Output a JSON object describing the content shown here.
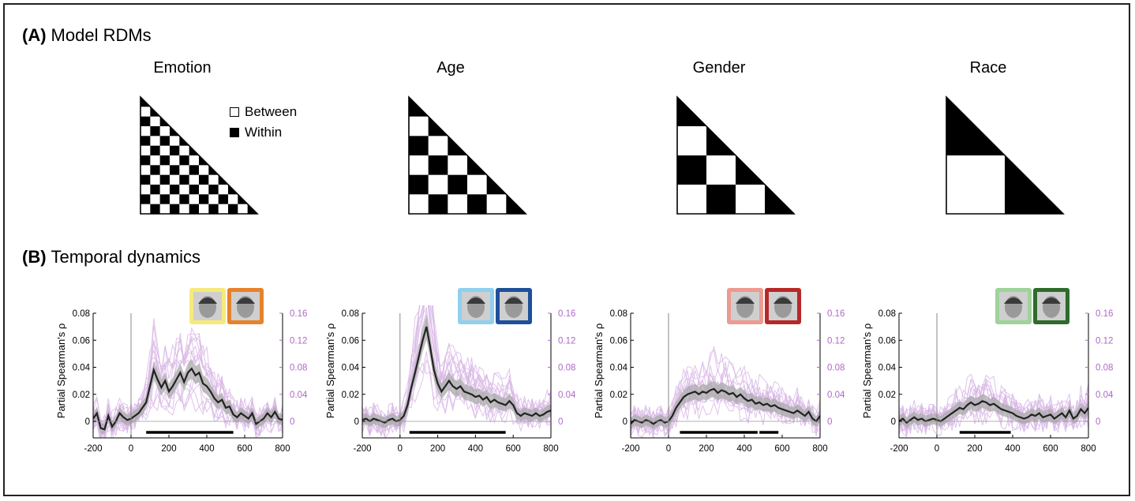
{
  "sections": {
    "a": {
      "label": "(A)",
      "title": "Model RDMs"
    },
    "b": {
      "label": "(B)",
      "title": "Temporal dynamics"
    }
  },
  "legend": {
    "between": "Between",
    "within": "Within"
  },
  "rdms": [
    {
      "title": "Emotion",
      "blocks": 12
    },
    {
      "title": "Age",
      "blocks": 6
    },
    {
      "title": "Gender",
      "blocks": 4
    },
    {
      "title": "Race",
      "blocks": 2
    }
  ],
  "colors": {
    "individual_lines": "#d9b8e6",
    "right_axis": "#b068c8",
    "mean_line": "#222222",
    "ci_band": "#aaaaaa",
    "emotion_frames": [
      "#f7ea7a",
      "#e8822a"
    ],
    "age_frames": [
      "#8fd0ef",
      "#1f4f9a"
    ],
    "gender_frames": [
      "#ee9a90",
      "#b82828"
    ],
    "race_frames": [
      "#9fd39a",
      "#2e6b2c"
    ]
  },
  "chart_data": [
    {
      "type": "line",
      "model": "Emotion",
      "xlabel": "",
      "ylabel": "Partial Spearman's ρ",
      "xlim": [
        -200,
        800
      ],
      "ylim": [
        -0.01,
        0.08
      ],
      "y2lim": [
        -0.02,
        0.16
      ],
      "xticks": [
        "-200",
        "0",
        "200",
        "400",
        "600",
        "800"
      ],
      "yticks": [
        "0",
        "0.02",
        "0.04",
        "0.06",
        "0.08"
      ],
      "y2ticks": [
        "0",
        "0.04",
        "0.08",
        "0.12",
        "0.16"
      ],
      "mean_x": [
        -200,
        -180,
        -160,
        -140,
        -120,
        -100,
        -80,
        -60,
        -40,
        -20,
        0,
        20,
        40,
        60,
        80,
        100,
        120,
        140,
        160,
        180,
        200,
        220,
        240,
        260,
        280,
        300,
        320,
        340,
        360,
        380,
        400,
        420,
        440,
        460,
        480,
        500,
        520,
        540,
        560,
        580,
        600,
        620,
        640,
        660,
        680,
        700,
        720,
        740,
        760,
        780,
        800
      ],
      "mean_y": [
        0.002,
        0.006,
        -0.005,
        -0.006,
        0.004,
        -0.004,
        0.0,
        0.006,
        0.003,
        0.001,
        0.002,
        0.004,
        0.006,
        0.01,
        0.014,
        0.026,
        0.038,
        0.031,
        0.025,
        0.03,
        0.022,
        0.026,
        0.031,
        0.036,
        0.029,
        0.036,
        0.039,
        0.034,
        0.036,
        0.028,
        0.026,
        0.022,
        0.017,
        0.014,
        0.016,
        0.01,
        0.011,
        0.005,
        0.003,
        0.006,
        0.004,
        0.002,
        0.006,
        -0.002,
        0.0,
        0.002,
        0.006,
        0.003,
        0.007,
        0.002,
        0.001
      ],
      "significant_intervals": [
        [
          80,
          540
        ]
      ],
      "face_frames": 2
    },
    {
      "type": "line",
      "model": "Age",
      "xlabel": "",
      "ylabel": "Partial Spearman's ρ",
      "xlim": [
        -200,
        800
      ],
      "ylim": [
        -0.01,
        0.08
      ],
      "y2lim": [
        -0.02,
        0.16
      ],
      "xticks": [
        "-200",
        "0",
        "200",
        "400",
        "600",
        "800"
      ],
      "yticks": [
        "0",
        "0.02",
        "0.04",
        "0.06",
        "0.08"
      ],
      "y2ticks": [
        "0",
        "0.04",
        "0.08",
        "0.12",
        "0.16"
      ],
      "mean_x": [
        -200,
        -180,
        -160,
        -140,
        -120,
        -100,
        -80,
        -60,
        -40,
        -20,
        0,
        20,
        40,
        60,
        80,
        100,
        120,
        140,
        160,
        180,
        200,
        220,
        240,
        260,
        280,
        300,
        320,
        340,
        360,
        380,
        400,
        420,
        440,
        460,
        480,
        500,
        520,
        540,
        560,
        580,
        600,
        620,
        640,
        660,
        680,
        700,
        720,
        740,
        760,
        780,
        800
      ],
      "mean_y": [
        0.001,
        0.002,
        0.0,
        0.002,
        0.001,
        0.0,
        -0.001,
        0.001,
        0.002,
        0.0,
        0.001,
        0.004,
        0.012,
        0.025,
        0.036,
        0.048,
        0.06,
        0.07,
        0.055,
        0.038,
        0.028,
        0.022,
        0.026,
        0.03,
        0.026,
        0.024,
        0.026,
        0.022,
        0.021,
        0.02,
        0.018,
        0.019,
        0.016,
        0.018,
        0.014,
        0.016,
        0.014,
        0.013,
        0.012,
        0.015,
        0.012,
        0.006,
        0.004,
        0.006,
        0.005,
        0.004,
        0.006,
        0.004,
        0.005,
        0.007,
        0.008
      ],
      "significant_intervals": [
        [
          50,
          560
        ]
      ],
      "face_frames": 2
    },
    {
      "type": "line",
      "model": "Gender",
      "xlabel": "",
      "ylabel": "Partial Spearman's ρ",
      "xlim": [
        -200,
        800
      ],
      "ylim": [
        -0.01,
        0.08
      ],
      "y2lim": [
        -0.02,
        0.16
      ],
      "xticks": [
        "-200",
        "0",
        "200",
        "400",
        "600",
        "800"
      ],
      "yticks": [
        "0",
        "0.02",
        "0.04",
        "0.06",
        "0.08"
      ],
      "y2ticks": [
        "0",
        "0.04",
        "0.08",
        "0.12",
        "0.16"
      ],
      "mean_x": [
        -200,
        -180,
        -160,
        -140,
        -120,
        -100,
        -80,
        -60,
        -40,
        -20,
        0,
        20,
        40,
        60,
        80,
        100,
        120,
        140,
        160,
        180,
        200,
        220,
        240,
        260,
        280,
        300,
        320,
        340,
        360,
        380,
        400,
        420,
        440,
        460,
        480,
        500,
        520,
        540,
        560,
        580,
        600,
        620,
        640,
        660,
        680,
        700,
        720,
        740,
        760,
        780,
        800
      ],
      "mean_y": [
        -0.002,
        0.001,
        0.0,
        -0.001,
        0.001,
        0.0,
        -0.002,
        0.0,
        0.001,
        -0.001,
        0.0,
        0.004,
        0.01,
        0.014,
        0.018,
        0.02,
        0.021,
        0.022,
        0.02,
        0.022,
        0.021,
        0.023,
        0.024,
        0.021,
        0.023,
        0.022,
        0.02,
        0.021,
        0.018,
        0.02,
        0.017,
        0.015,
        0.016,
        0.013,
        0.014,
        0.012,
        0.013,
        0.011,
        0.012,
        0.01,
        0.009,
        0.008,
        0.007,
        0.006,
        0.008,
        0.006,
        0.004,
        0.007,
        0.002,
        0.0,
        0.004
      ],
      "significant_intervals": [
        [
          60,
          470
        ],
        [
          480,
          580
        ]
      ],
      "face_frames": 2
    },
    {
      "type": "line",
      "model": "Race",
      "xlabel": "",
      "ylabel": "Partial Spearman's ρ",
      "xlim": [
        -200,
        800
      ],
      "ylim": [
        -0.01,
        0.08
      ],
      "y2lim": [
        -0.02,
        0.16
      ],
      "xticks": [
        "-200",
        "0",
        "200",
        "400",
        "600",
        "800"
      ],
      "yticks": [
        "0",
        "0.02",
        "0.04",
        "0.06",
        "0.08"
      ],
      "y2ticks": [
        "0",
        "0.04",
        "0.08",
        "0.12",
        "0.16"
      ],
      "mean_x": [
        -200,
        -180,
        -160,
        -140,
        -120,
        -100,
        -80,
        -60,
        -40,
        -20,
        0,
        20,
        40,
        60,
        80,
        100,
        120,
        140,
        160,
        180,
        200,
        220,
        240,
        260,
        280,
        300,
        320,
        340,
        360,
        380,
        400,
        420,
        440,
        460,
        480,
        500,
        520,
        540,
        560,
        580,
        600,
        620,
        640,
        660,
        680,
        700,
        720,
        740,
        760,
        780,
        800
      ],
      "mean_y": [
        0.0,
        0.002,
        -0.001,
        0.001,
        0.003,
        0.001,
        0.002,
        0.0,
        0.001,
        0.002,
        0.001,
        0.0,
        0.002,
        0.004,
        0.006,
        0.008,
        0.01,
        0.009,
        0.012,
        0.014,
        0.012,
        0.013,
        0.015,
        0.014,
        0.012,
        0.013,
        0.011,
        0.009,
        0.008,
        0.007,
        0.006,
        0.004,
        0.003,
        0.002,
        0.003,
        0.005,
        0.004,
        0.006,
        0.003,
        0.004,
        0.005,
        0.002,
        0.004,
        0.006,
        0.003,
        0.008,
        0.002,
        0.004,
        0.009,
        0.006,
        0.01
      ],
      "significant_intervals": [
        [
          120,
          390
        ]
      ],
      "face_frames": 2
    }
  ]
}
